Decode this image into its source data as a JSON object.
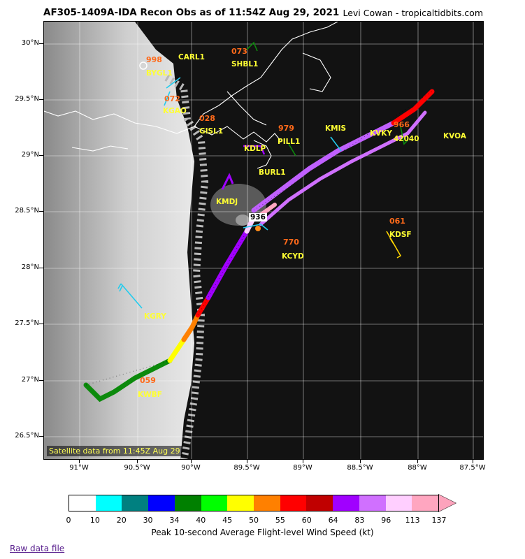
{
  "header": {
    "title": "AF305-1409A-IDA Recon Obs as of 11:54Z Aug 29, 2021",
    "credit": "Levi Cowan - tropicaltidbits.com"
  },
  "axes": {
    "y_labels": [
      "30°N",
      "29.5°N",
      "29°N",
      "28.5°N",
      "28°N",
      "27.5°N",
      "27°N",
      "26.5°N"
    ],
    "x_labels": [
      "91°W",
      "90.5°W",
      "90°W",
      "89.5°W",
      "89°W",
      "88.5°W",
      "88°W",
      "87.5°W"
    ]
  },
  "map": {
    "satellite_note": "Satellite data from 11:45Z Aug 29",
    "pressure_label": "936",
    "stations": [
      {
        "name": "CARL1"
      },
      {
        "name": "BYGL1"
      },
      {
        "name": "SHBL1"
      },
      {
        "name": "KGAO"
      },
      {
        "name": "GISL1"
      },
      {
        "name": "KMIS"
      },
      {
        "name": "KVKY"
      },
      {
        "name": "42040"
      },
      {
        "name": "KVOA"
      },
      {
        "name": "KDLP"
      },
      {
        "name": "PILL1"
      },
      {
        "name": "BURL1"
      },
      {
        "name": "KMDJ"
      },
      {
        "name": "KCYD"
      },
      {
        "name": "KDSF"
      },
      {
        "name": "KGRY"
      },
      {
        "name": "KWBF"
      }
    ],
    "pressure_obs": [
      {
        "value": "998"
      },
      {
        "value": "073"
      },
      {
        "value": "072"
      },
      {
        "value": "028"
      },
      {
        "value": "979"
      },
      {
        "value": "966"
      },
      {
        "value": "061"
      },
      {
        "value": "770"
      },
      {
        "value": "059"
      }
    ]
  },
  "colorbar": {
    "label": "Peak 10-second Average Flight-level Wind Speed (kt)",
    "ticks": [
      "0",
      "10",
      "20",
      "30",
      "34",
      "40",
      "45",
      "50",
      "55",
      "60",
      "64",
      "83",
      "96",
      "113",
      "137"
    ],
    "colors": [
      "#ffffff",
      "#00ffff",
      "#008080",
      "#0000ff",
      "#008000",
      "#00ff00",
      "#ffff00",
      "#ff8000",
      "#ff0000",
      "#c00000",
      "#a000ff",
      "#d070ff",
      "#ffcfff",
      "#ffa6c0"
    ]
  },
  "footer": {
    "raw_link": "Raw data file"
  }
}
